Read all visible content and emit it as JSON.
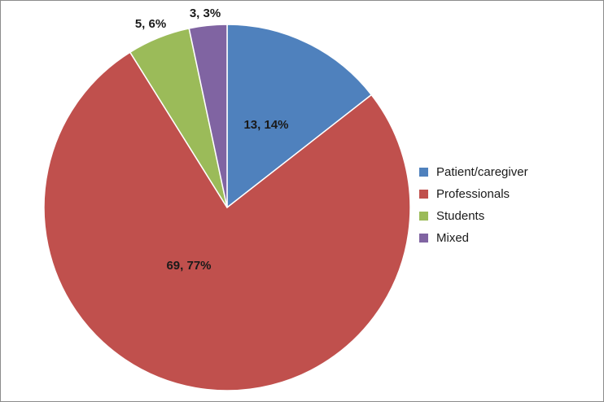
{
  "chart_data": {
    "type": "pie",
    "title": "",
    "categories": [
      "Patient/caregiver",
      "Professionals",
      "Students",
      "Mixed"
    ],
    "values": [
      13,
      69,
      5,
      3
    ],
    "percents": [
      14,
      77,
      6,
      3
    ],
    "data_labels": [
      "13, 14%",
      "69, 77%",
      "5, 6%",
      "3, 3%"
    ],
    "colors": [
      "#4f81bd",
      "#c0504d",
      "#9bbb59",
      "#8064a2"
    ],
    "start_angle_deg": 0,
    "direction": "clockwise",
    "legend_position": "right"
  }
}
